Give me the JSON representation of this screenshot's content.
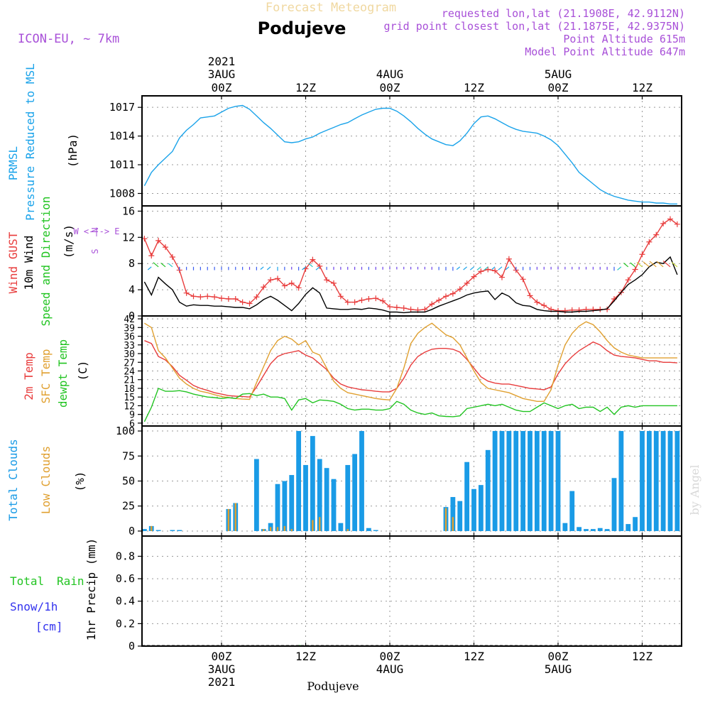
{
  "header": {
    "super_title": "Forecast Meteogram",
    "location": "Podujeve",
    "model": "ICON-EU, ~ 7km",
    "requested": "requested lon,lat (21.1908E, 42.9112N)",
    "grid_point": "grid point closest lon,lat (21.1875E, 42.9375N)",
    "point_altitude": "Point Altitude 615m",
    "model_altitude": "Model Point Altitude 647m",
    "watermark": "by Angel",
    "bottom_label": "Podujeve"
  },
  "time_axis": {
    "year": "2021",
    "ticks": [
      "00Z",
      "12Z",
      "00Z",
      "12Z",
      "00Z",
      "12Z"
    ],
    "day_labels": [
      "3AUG",
      "4AUG",
      "5AUG"
    ],
    "tick_hours": [
      12,
      24,
      36,
      48,
      60,
      72
    ]
  },
  "colors": {
    "pressure": "#1aa3ea",
    "gust": "#e83c3c",
    "wind": "#000000",
    "sfc_temp": "#e0a030",
    "dewpt": "#22c422",
    "total_clouds": "#1a9be6",
    "low_clouds": "#e0a030",
    "rain": "#22c422",
    "snow": "#3333ee",
    "purple": "#a850d8"
  },
  "panels": {
    "pressure": {
      "labels": [
        "PRMSL",
        "Pressure Reduced to MSL"
      ],
      "unit": "(hPa)",
      "yticks": [
        "1008",
        "1011",
        "1014",
        "1017"
      ]
    },
    "wind": {
      "labels": [
        "Wind GUST",
        "10m Wind",
        "Speed and Direction"
      ],
      "unit": "(m/s)",
      "compass": [
        "N",
        "W <-|-> E",
        "S"
      ],
      "yticks": [
        "0",
        "4",
        "8",
        "12",
        "16"
      ]
    },
    "temp": {
      "labels": [
        "2m Temp",
        "SFC Temp",
        "dewpt Temp"
      ],
      "unit": "(C)",
      "yticks": [
        "6",
        "9",
        "12",
        "15",
        "18",
        "21",
        "24",
        "27",
        "30",
        "33",
        "36",
        "39",
        "42"
      ]
    },
    "clouds": {
      "labels": [
        "Total Clouds",
        "Low Clouds"
      ],
      "unit": "(%)",
      "yticks": [
        "0",
        "25",
        "50",
        "75",
        "100"
      ]
    },
    "precip": {
      "labels": [
        "Total",
        "Rain",
        "Snow/1h",
        "[cm]"
      ],
      "axis_label": "1hr Precip (mm)",
      "yticks": [
        "0",
        "0.2",
        "0.4",
        "0.6",
        "0.8"
      ]
    }
  },
  "chart_data": [
    {
      "type": "line",
      "title": "PRMSL Pressure Reduced to MSL",
      "ylabel": "(hPa)",
      "ylim": [
        1006.7,
        1018.2
      ],
      "x_hours": [
        1,
        2,
        3,
        4,
        5,
        6,
        7,
        8,
        9,
        10,
        11,
        12,
        13,
        14,
        15,
        16,
        17,
        18,
        19,
        20,
        21,
        22,
        23,
        24,
        25,
        26,
        27,
        28,
        29,
        30,
        31,
        32,
        33,
        34,
        35,
        36,
        37,
        38,
        39,
        40,
        41,
        42,
        43,
        44,
        45,
        46,
        47,
        48,
        49,
        50,
        51,
        52,
        53,
        54,
        55,
        56,
        57,
        58,
        59,
        60,
        61,
        62,
        63,
        64,
        65,
        66,
        67,
        68,
        69,
        70,
        71,
        72,
        73,
        74,
        75,
        76,
        77
      ],
      "series": [
        {
          "values": [
            1008.8,
            1010.2,
            1011.0,
            1011.7,
            1012.4,
            1013.8,
            1014.6,
            1015.2,
            1015.9,
            1016.0,
            1016.1,
            1016.5,
            1016.9,
            1017.1,
            1017.2,
            1016.8,
            1016.1,
            1015.4,
            1014.8,
            1014.1,
            1013.4,
            1013.3,
            1013.4,
            1013.7,
            1013.9,
            1014.3,
            1014.6,
            1014.9,
            1015.2,
            1015.4,
            1015.8,
            1016.2,
            1016.5,
            1016.8,
            1016.9,
            1016.9,
            1016.6,
            1016.1,
            1015.5,
            1014.8,
            1014.2,
            1013.7,
            1013.4,
            1013.1,
            1013.0,
            1013.5,
            1014.3,
            1015.3,
            1016.0,
            1016.1,
            1015.8,
            1015.4,
            1015.0,
            1014.7,
            1014.5,
            1014.4,
            1014.3,
            1014.0,
            1013.6,
            1013.0,
            1012.1,
            1011.2,
            1010.2,
            1009.6,
            1009.0,
            1008.4,
            1008.0,
            1007.7,
            1007.5,
            1007.3,
            1007.2,
            1007.1,
            1007.1,
            1007.0,
            1007.0,
            1006.9,
            1006.9
          ]
        }
      ]
    },
    {
      "type": "line",
      "title": "Wind GUST / 10m Wind Speed and Direction",
      "ylabel": "(m/s)",
      "ylim": [
        0,
        16.8
      ],
      "x_hours": [
        1,
        2,
        3,
        4,
        5,
        6,
        7,
        8,
        9,
        10,
        11,
        12,
        13,
        14,
        15,
        16,
        17,
        18,
        19,
        20,
        21,
        22,
        23,
        24,
        25,
        26,
        27,
        28,
        29,
        30,
        31,
        32,
        33,
        34,
        35,
        36,
        37,
        38,
        39,
        40,
        41,
        42,
        43,
        44,
        45,
        46,
        47,
        48,
        49,
        50,
        51,
        52,
        53,
        54,
        55,
        56,
        57,
        58,
        59,
        60,
        61,
        62,
        63,
        64,
        65,
        66,
        67,
        68,
        69,
        70,
        71,
        72,
        73,
        74,
        75,
        76,
        77
      ],
      "series": [
        {
          "name": "Wind GUST",
          "values": [
            11.8,
            9.2,
            11.5,
            10.5,
            9.0,
            7.0,
            3.5,
            3.0,
            2.9,
            3.0,
            2.9,
            2.7,
            2.6,
            2.6,
            2.1,
            1.9,
            2.9,
            4.4,
            5.5,
            5.7,
            4.6,
            5.0,
            4.3,
            7.2,
            8.6,
            7.6,
            5.5,
            5.0,
            3.0,
            2.1,
            2.1,
            2.4,
            2.6,
            2.7,
            2.3,
            1.4,
            1.3,
            1.2,
            1.0,
            0.9,
            1.0,
            1.8,
            2.4,
            3.0,
            3.4,
            4.1,
            5.0,
            6.0,
            6.8,
            7.1,
            6.9,
            5.9,
            8.7,
            7.0,
            5.6,
            3.1,
            2.1,
            1.6,
            1.0,
            0.8,
            0.8,
            0.9,
            0.9,
            1.0,
            1.0,
            1.0,
            1.0,
            2.6,
            3.6,
            5.5,
            7.1,
            9.4,
            11.3,
            12.4,
            14.1,
            14.8,
            14.0
          ]
        },
        {
          "name": "10m Wind",
          "values": [
            5.2,
            3.2,
            5.9,
            4.9,
            4.0,
            2.1,
            1.5,
            1.7,
            1.6,
            1.6,
            1.5,
            1.5,
            1.4,
            1.3,
            1.3,
            1.1,
            1.7,
            2.5,
            3.0,
            2.4,
            1.6,
            0.8,
            1.9,
            3.3,
            4.3,
            3.5,
            1.2,
            1.1,
            1.0,
            1.0,
            1.1,
            1.0,
            1.2,
            1.1,
            0.9,
            0.6,
            0.6,
            0.5,
            0.6,
            0.6,
            0.6,
            1.0,
            1.5,
            1.9,
            2.3,
            2.7,
            3.2,
            3.5,
            3.7,
            3.8,
            2.5,
            3.5,
            3.0,
            2.0,
            1.6,
            1.5,
            1.0,
            0.8,
            0.7,
            0.7,
            0.6,
            0.6,
            0.7,
            0.7,
            0.8,
            0.9,
            1.1,
            2.3,
            3.6,
            4.8,
            5.5,
            6.3,
            7.5,
            8.2,
            8.0,
            9.0,
            6.3
          ]
        }
      ]
    },
    {
      "type": "line",
      "title": "2m Temp / SFC Temp / dewpt Temp",
      "ylabel": "(C)",
      "ylim": [
        5,
        43
      ],
      "x_hours": [
        1,
        2,
        3,
        4,
        5,
        6,
        7,
        8,
        9,
        10,
        11,
        12,
        13,
        14,
        15,
        16,
        17,
        18,
        19,
        20,
        21,
        22,
        23,
        24,
        25,
        26,
        27,
        28,
        29,
        30,
        31,
        32,
        33,
        34,
        35,
        36,
        37,
        38,
        39,
        40,
        41,
        42,
        43,
        44,
        45,
        46,
        47,
        48,
        49,
        50,
        51,
        52,
        53,
        54,
        55,
        56,
        57,
        58,
        59,
        60,
        61,
        62,
        63,
        64,
        65,
        66,
        67,
        68,
        69,
        70,
        71,
        72,
        73,
        74,
        75,
        76,
        77
      ],
      "series": [
        {
          "name": "2m Temp",
          "values": [
            34.5,
            33.5,
            29.0,
            27.8,
            25.5,
            22.5,
            20.8,
            19.0,
            18.0,
            17.3,
            16.5,
            16.0,
            15.5,
            15.3,
            15.2,
            15.0,
            18.5,
            22.5,
            26.5,
            29.0,
            30.0,
            30.5,
            31.0,
            29.5,
            28.5,
            26.5,
            24.5,
            21.5,
            19.5,
            18.5,
            18.0,
            17.5,
            17.3,
            17.0,
            16.8,
            16.8,
            18.0,
            21.5,
            26.0,
            29.0,
            30.5,
            31.5,
            31.8,
            31.8,
            31.5,
            30.5,
            28.0,
            25.0,
            22.0,
            20.5,
            19.8,
            19.5,
            19.5,
            19.0,
            18.5,
            18.0,
            17.8,
            17.5,
            18.5,
            23.0,
            26.5,
            29.0,
            31.0,
            32.5,
            34.0,
            33.0,
            31.0,
            29.5,
            29.0,
            28.8,
            28.5,
            28.0,
            27.5,
            27.5,
            27.0,
            27.0,
            26.8
          ]
        },
        {
          "name": "SFC Temp",
          "values": [
            40.5,
            39.0,
            31.0,
            28.5,
            25.0,
            21.5,
            19.5,
            18.0,
            17.0,
            16.5,
            15.8,
            15.2,
            14.8,
            14.5,
            14.3,
            14.2,
            20.0,
            25.5,
            31.0,
            34.5,
            36.0,
            35.0,
            33.0,
            34.5,
            30.5,
            29.5,
            25.0,
            20.5,
            18.0,
            16.5,
            16.0,
            15.5,
            15.0,
            14.5,
            14.2,
            14.0,
            18.0,
            25.0,
            33.5,
            37.0,
            39.0,
            40.5,
            38.5,
            36.5,
            35.5,
            33.0,
            28.5,
            24.0,
            20.0,
            18.0,
            17.5,
            17.0,
            16.5,
            15.5,
            14.5,
            14.0,
            13.5,
            13.5,
            17.5,
            26.0,
            33.0,
            37.0,
            39.5,
            41.0,
            40.0,
            37.5,
            34.5,
            32.0,
            30.5,
            29.5,
            29.0,
            28.5,
            28.5,
            28.5,
            28.5,
            28.5,
            28.5
          ]
        },
        {
          "name": "dewpt Temp",
          "values": [
            6.5,
            11.5,
            18.0,
            17.0,
            17.0,
            17.2,
            16.8,
            16.0,
            15.5,
            15.0,
            14.8,
            14.5,
            14.8,
            14.5,
            16.0,
            16.2,
            15.5,
            16.0,
            15.0,
            15.0,
            14.5,
            10.5,
            14.0,
            14.5,
            13.0,
            14.0,
            13.8,
            13.5,
            12.5,
            11.0,
            10.5,
            10.8,
            10.8,
            10.5,
            10.5,
            11.0,
            13.5,
            12.5,
            10.5,
            9.5,
            9.0,
            9.5,
            8.5,
            8.3,
            8.2,
            8.5,
            11.0,
            11.5,
            12.0,
            12.5,
            12.0,
            12.5,
            11.5,
            10.5,
            10.0,
            10.0,
            11.5,
            13.0,
            12.0,
            11.0,
            12.0,
            12.5,
            11.0,
            11.5,
            11.5,
            10.0,
            11.5,
            9.0,
            11.5,
            12.0,
            11.5,
            12.0,
            12.0,
            12.0,
            12.0,
            12.0,
            12.0
          ]
        }
      ]
    },
    {
      "type": "bar",
      "title": "Total Clouds / Low Clouds",
      "ylabel": "(%)",
      "ylim": [
        -5,
        105
      ],
      "x_hours": [
        1,
        2,
        3,
        4,
        5,
        6,
        7,
        8,
        9,
        10,
        11,
        12,
        13,
        14,
        15,
        16,
        17,
        18,
        19,
        20,
        21,
        22,
        23,
        24,
        25,
        26,
        27,
        28,
        29,
        30,
        31,
        32,
        33,
        34,
        35,
        36,
        37,
        38,
        39,
        40,
        41,
        42,
        43,
        44,
        45,
        46,
        47,
        48,
        49,
        50,
        51,
        52,
        53,
        54,
        55,
        56,
        57,
        58,
        59,
        60,
        61,
        62,
        63,
        64,
        65,
        66,
        67,
        68,
        69,
        70,
        71,
        72,
        73,
        74,
        75,
        76,
        77
      ],
      "series": [
        {
          "name": "Total Clouds",
          "values": [
            2,
            5,
            1,
            0,
            1,
            1,
            0,
            0,
            0,
            0,
            0,
            0,
            22,
            28,
            0,
            0,
            72,
            2,
            8,
            47,
            50,
            56,
            100,
            66,
            95,
            72,
            63,
            52,
            8,
            66,
            77,
            100,
            3,
            1,
            0,
            0,
            0,
            0,
            0,
            0,
            0,
            0,
            0,
            24,
            34,
            30,
            69,
            42,
            46,
            81,
            100,
            100,
            100,
            100,
            100,
            100,
            100,
            100,
            100,
            100,
            8,
            40,
            4,
            2,
            2,
            3,
            2,
            53,
            100,
            7,
            14,
            100,
            100,
            100,
            100,
            100,
            100
          ]
        },
        {
          "name": "Low Clouds",
          "values": [
            0,
            5,
            0,
            0,
            0,
            0,
            0,
            0,
            0,
            0,
            0,
            0,
            22,
            28,
            0,
            0,
            0,
            2,
            4,
            4,
            5,
            2,
            0,
            0,
            11,
            14,
            0,
            0,
            0,
            2,
            0,
            0,
            0,
            0,
            0,
            0,
            0,
            0,
            0,
            0,
            0,
            0,
            0,
            23,
            14,
            0,
            0,
            0,
            0,
            0,
            0,
            0,
            0,
            0,
            0,
            0,
            0,
            0,
            0,
            0,
            0,
            0,
            0,
            0,
            0,
            0,
            0,
            0,
            0,
            0,
            0,
            0,
            0,
            0,
            0,
            0,
            0
          ]
        }
      ]
    },
    {
      "type": "bar",
      "title": "1hr Precip (mm)",
      "ylabel": "1hr Precip (mm)",
      "ylim": [
        0,
        0.98
      ],
      "x_hours": [
        23
      ],
      "series": [
        {
          "name": "Total Rain",
          "values": [
            0.005
          ]
        }
      ]
    }
  ]
}
